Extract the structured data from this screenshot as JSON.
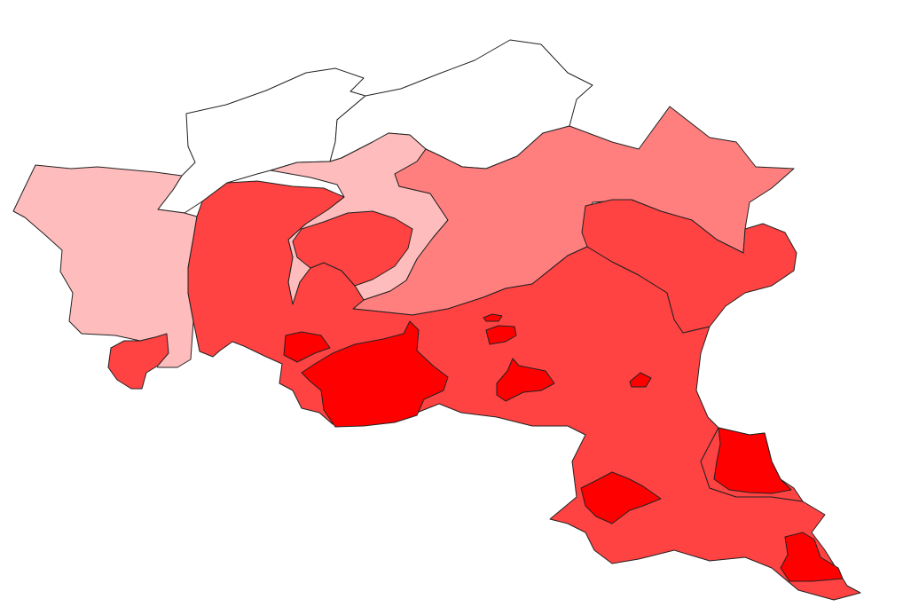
{
  "map": {
    "type": "choropleth",
    "background": "#ffffff",
    "border_color": "#222222",
    "shade_colors": {
      "none": "#ffffff",
      "light": "#ffbcbc",
      "medium": "#ff7f7f",
      "strong": "#ff4242",
      "max": "#ff0000"
    },
    "regions": [
      {
        "id": "north-west",
        "shade": "none"
      },
      {
        "id": "north-east",
        "shade": "none"
      },
      {
        "id": "west",
        "shade": "light"
      },
      {
        "id": "north-central",
        "shade": "light"
      },
      {
        "id": "east-central",
        "shade": "medium"
      },
      {
        "id": "central",
        "shade": "strong"
      },
      {
        "id": "south-east",
        "shade": "strong"
      },
      {
        "id": "south-west-pocket",
        "shade": "strong"
      },
      {
        "id": "far-east",
        "shade": "strong"
      },
      {
        "id": "south",
        "shade": "strong"
      },
      {
        "id": "city-center",
        "shade": "max"
      },
      {
        "id": "city-west",
        "shade": "max"
      },
      {
        "id": "city-mid",
        "shade": "max"
      },
      {
        "id": "city-south",
        "shade": "max"
      },
      {
        "id": "city-southeast",
        "shade": "max"
      },
      {
        "id": "city-far-southeast",
        "shade": "max"
      },
      {
        "id": "enclave-1",
        "shade": "max"
      },
      {
        "id": "enclave-2",
        "shade": "max"
      },
      {
        "id": "enclave-3",
        "shade": "max"
      }
    ]
  }
}
